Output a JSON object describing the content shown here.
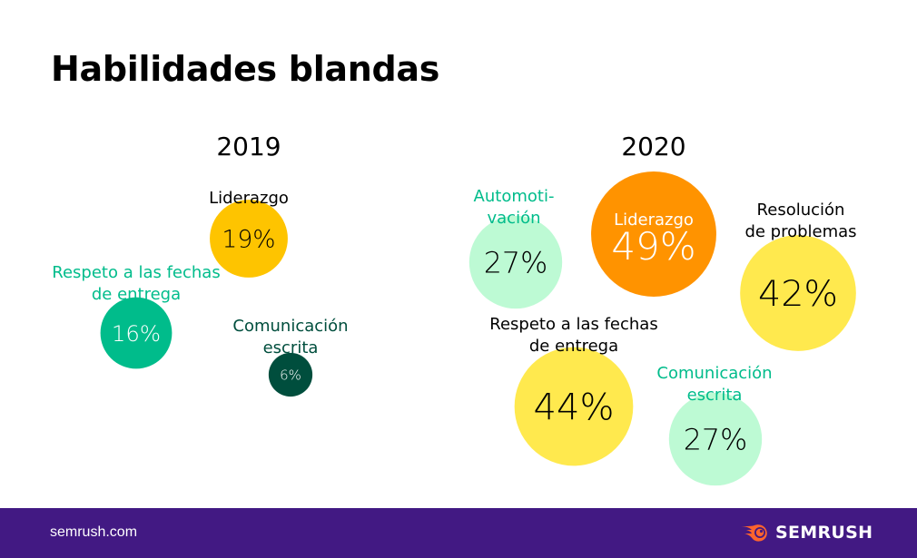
{
  "title": "Habilidades blandas",
  "footer": {
    "url": "semrush.com",
    "brand": "SEMRUSH",
    "logo_icon": "semrush-fire-ball-icon"
  },
  "colors": {
    "leadership_2019": "#FEC400",
    "deadlines_2019": "#00BC8B",
    "writing_2019": "#004E3D",
    "leadership_2020": "#FF9300",
    "problems_2020": "#FFE94E",
    "deadlines_2020": "#FFE94E",
    "motivation_2020": "#BDFAD4",
    "writing_2020": "#BDFAD4",
    "label_teal": "#00BC8B",
    "label_dark_green": "#004E3D",
    "footer_bg": "#421983"
  },
  "chart_data": [
    {
      "type": "bubble",
      "title": "2019",
      "unit": "%",
      "items": [
        {
          "label": "Liderazgo",
          "value": 19,
          "display": "19%",
          "label_lines": [
            "Liderazgo"
          ],
          "color": "#FEC400",
          "label_color": "#000000",
          "text_color": "#000000"
        },
        {
          "label": "Respeto a las fechas de entrega",
          "value": 16,
          "display": "16%",
          "label_lines": [
            "Respeto a las fechas",
            "de entrega"
          ],
          "color": "#00BC8B",
          "label_color": "#00BC8B",
          "text_color": "#ffffff"
        },
        {
          "label": "Comunicación escrita",
          "value": 6,
          "display": "6%",
          "label_lines": [
            "Comunicación",
            "escrita"
          ],
          "color": "#004E3D",
          "label_color": "#004E3D",
          "text_color": "#ffffff"
        }
      ]
    },
    {
      "type": "bubble",
      "title": "2020",
      "unit": "%",
      "items": [
        {
          "label": "Automotivación",
          "value": 27,
          "display": "27%",
          "label_lines": [
            "Automoti-",
            "vación"
          ],
          "color": "#BDFAD4",
          "label_color": "#00BC8B",
          "text_color": "#000000"
        },
        {
          "label": "Liderazgo",
          "value": 49,
          "display": "49%",
          "label_lines": [
            "Liderazgo"
          ],
          "color": "#FF9300",
          "label_color": "#ffffff",
          "text_color": "#ffffff",
          "label_inside": true
        },
        {
          "label": "Resolución de problemas",
          "value": 42,
          "display": "42%",
          "label_lines": [
            "Resolución",
            "de problemas"
          ],
          "color": "#FFE94E",
          "label_color": "#000000",
          "text_color": "#000000"
        },
        {
          "label": "Respeto a las fechas de entrega",
          "value": 44,
          "display": "44%",
          "label_lines": [
            "Respeto a las fechas",
            "de entrega"
          ],
          "color": "#FFE94E",
          "label_color": "#000000",
          "text_color": "#000000"
        },
        {
          "label": "Comunicación escrita",
          "value": 27,
          "display": "27%",
          "label_lines": [
            "Comunicación",
            "escrita"
          ],
          "color": "#BDFAD4",
          "label_color": "#00BC8B",
          "text_color": "#000000"
        }
      ]
    }
  ]
}
